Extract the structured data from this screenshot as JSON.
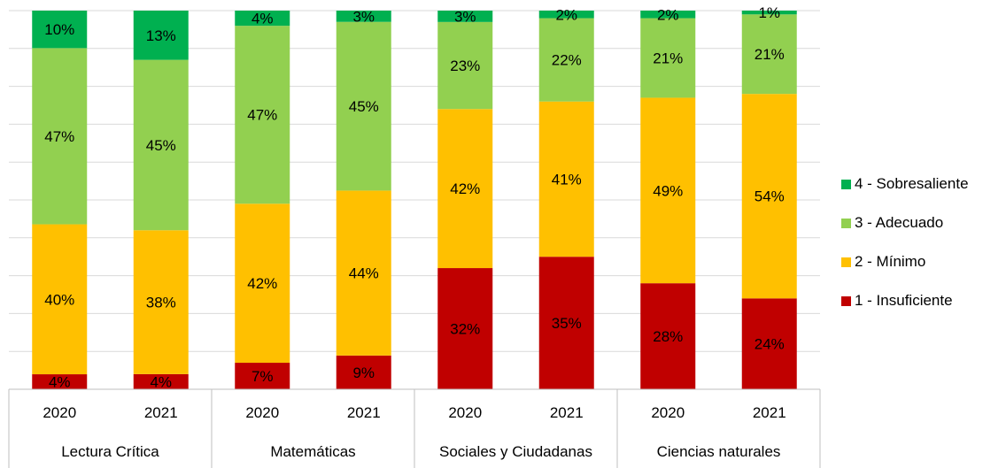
{
  "chart_data": {
    "type": "bar",
    "stacked": true,
    "normalized_percent": true,
    "grid": true,
    "legend_position": "right",
    "groups": [
      "Lectura Crítica",
      "Matemáticas",
      "Sociales y Ciudadanas",
      "Ciencias naturales"
    ],
    "categories": [
      "2020",
      "2021",
      "2020",
      "2021",
      "2020",
      "2021",
      "2020",
      "2021"
    ],
    "series": [
      {
        "name": "1 - Insuficiente",
        "color": "#C00000",
        "values": [
          4,
          4,
          7,
          9,
          32,
          35,
          28,
          24
        ]
      },
      {
        "name": "2 - Mínimo",
        "color": "#FFC000",
        "values": [
          40,
          38,
          42,
          44,
          42,
          41,
          49,
          54
        ]
      },
      {
        "name": "3 - Adecuado",
        "color": "#92D050",
        "values": [
          47,
          45,
          47,
          45,
          23,
          22,
          21,
          21
        ]
      },
      {
        "name": "4 - Sobresaliente",
        "color": "#00B050",
        "values": [
          10,
          13,
          4,
          3,
          3,
          2,
          2,
          1
        ]
      }
    ],
    "legend_order": [
      3,
      2,
      1,
      0
    ],
    "value_suffix": "%"
  }
}
